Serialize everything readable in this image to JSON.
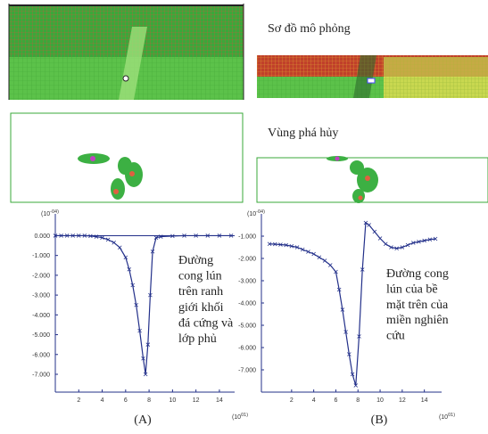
{
  "labels": {
    "scheme": "Sơ đồ mô phỏng",
    "damage": "Vùng phá hủy",
    "panel_a": "(A)",
    "panel_b": "(B)"
  },
  "chart_data": [
    {
      "type": "line",
      "y_unit": {
        "base": "(10",
        "exp": "-04)"
      },
      "x_unit": {
        "base": "(10",
        "exp": "01)"
      },
      "annotation": [
        "Đường",
        "cong lún",
        "trên ranh",
        "giới khối",
        "đá cứng và",
        "lớp phủ"
      ],
      "xlim": [
        0,
        15.3
      ],
      "ylim": [
        -7.9,
        1.1
      ],
      "xticks": [
        2,
        4,
        6,
        8,
        10,
        12,
        14
      ],
      "yticks": [
        {
          "value": 0,
          "label": "0.000"
        },
        {
          "value": -1,
          "label": "-1.000"
        },
        {
          "value": -2,
          "label": "-2.000"
        },
        {
          "value": -3,
          "label": "-3.000"
        },
        {
          "value": -4,
          "label": "-4.000"
        },
        {
          "value": -5,
          "label": "-5.000"
        },
        {
          "value": -6,
          "label": "-6.000"
        },
        {
          "value": -7,
          "label": "-7.000"
        }
      ],
      "color": "#23308a",
      "x": [
        0,
        0.5,
        1,
        1.5,
        2,
        2.5,
        3,
        3.5,
        4,
        4.5,
        5,
        5.5,
        6,
        6.3,
        6.6,
        6.9,
        7.2,
        7.5,
        7.7,
        7.9,
        8.1,
        8.3,
        8.6,
        9,
        10,
        11,
        12,
        13,
        14,
        15
      ],
      "values": [
        0,
        0,
        0,
        0,
        0,
        0,
        -0.02,
        -0.05,
        -0.1,
        -0.2,
        -0.35,
        -0.6,
        -1.1,
        -1.7,
        -2.5,
        -3.5,
        -4.8,
        -6.2,
        -7.0,
        -5.5,
        -3.0,
        -0.8,
        -0.1,
        -0.05,
        -0.02,
        0,
        0,
        0,
        0,
        0
      ]
    },
    {
      "type": "line",
      "y_unit": {
        "base": "(10",
        "exp": "-04)"
      },
      "x_unit": {
        "base": "(10",
        "exp": "01)"
      },
      "annotation": [
        "Đường cong",
        "lún của bề",
        "mặt trên của",
        "miền nghiên",
        "cứu"
      ],
      "xlim": [
        -0.73,
        15.56
      ],
      "ylim": [
        -8,
        0
      ],
      "xticks": [
        2,
        4,
        6,
        8,
        10,
        12,
        14
      ],
      "yticks": [
        {
          "value": -1,
          "label": "-1.000"
        },
        {
          "value": -2,
          "label": "-2.000"
        },
        {
          "value": -3,
          "label": "-3.000"
        },
        {
          "value": -4,
          "label": "-4.000"
        },
        {
          "value": -5,
          "label": "-5.000"
        },
        {
          "value": -6,
          "label": "-6.000"
        },
        {
          "value": -7,
          "label": "-7.000"
        }
      ],
      "color": "#23308a",
      "x": [
        0,
        0.5,
        1,
        1.5,
        2,
        2.5,
        3,
        3.5,
        4,
        4.5,
        5,
        5.5,
        6,
        6.3,
        6.6,
        6.9,
        7.2,
        7.5,
        7.8,
        8.1,
        8.4,
        8.7,
        9,
        9.5,
        10,
        10.5,
        11,
        11.5,
        12,
        12.5,
        13,
        13.5,
        14,
        14.5,
        15
      ],
      "values": [
        -1.35,
        -1.36,
        -1.38,
        -1.4,
        -1.45,
        -1.5,
        -1.6,
        -1.7,
        -1.8,
        -1.95,
        -2.1,
        -2.3,
        -2.6,
        -3.4,
        -4.3,
        -5.3,
        -6.3,
        -7.2,
        -7.7,
        -5.5,
        -2.5,
        -0.4,
        -0.5,
        -0.8,
        -1.1,
        -1.35,
        -1.5,
        -1.55,
        -1.5,
        -1.4,
        -1.3,
        -1.25,
        -1.2,
        -1.15,
        -1.12
      ]
    }
  ]
}
